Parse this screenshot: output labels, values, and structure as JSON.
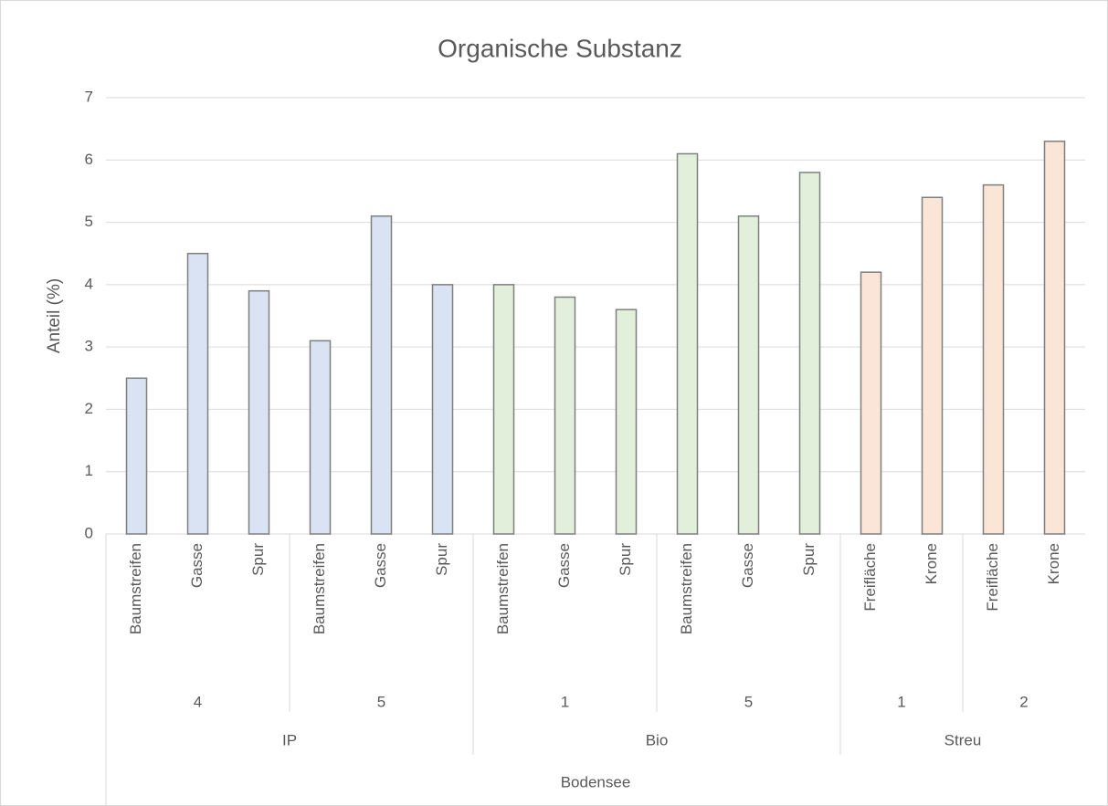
{
  "chart_data": {
    "type": "bar",
    "title": "Organische Substanz",
    "y_label": "Anteil (%)",
    "ylim": [
      0,
      7
    ],
    "yticks": [
      0,
      1,
      2,
      3,
      4,
      5,
      6,
      7
    ],
    "grid": true,
    "bar_edge_color": "#7f7f7f",
    "groups": [
      {
        "label": "Bodensee",
        "children": [
          {
            "label": "IP",
            "color": "#dae3f3",
            "children": [
              {
                "label": "4",
                "categories": [
                  "Baumstreifen",
                  "Gasse",
                  "Spur"
                ],
                "values": [
                  2.5,
                  4.5,
                  3.9
                ]
              },
              {
                "label": "5",
                "categories": [
                  "Baumstreifen",
                  "Gasse",
                  "Spur"
                ],
                "values": [
                  3.1,
                  5.1,
                  4.0
                ]
              }
            ]
          },
          {
            "label": "Bio",
            "color": "#e2efda",
            "children": [
              {
                "label": "1",
                "categories": [
                  "Baumstreifen",
                  "Gasse",
                  "Spur"
                ],
                "values": [
                  4.0,
                  3.8,
                  3.6
                ]
              },
              {
                "label": "5",
                "categories": [
                  "Baumstreifen",
                  "Gasse",
                  "Spur"
                ],
                "values": [
                  6.1,
                  5.1,
                  5.8
                ]
              }
            ]
          },
          {
            "label": "Streu",
            "color": "#fbe5d6",
            "children": [
              {
                "label": "1",
                "categories": [
                  "Freifläche",
                  "Krone"
                ],
                "values": [
                  4.2,
                  5.4
                ]
              },
              {
                "label": "2",
                "categories": [
                  "Freifläche",
                  "Krone"
                ],
                "values": [
                  5.6,
                  6.3
                ]
              }
            ]
          }
        ]
      }
    ]
  }
}
